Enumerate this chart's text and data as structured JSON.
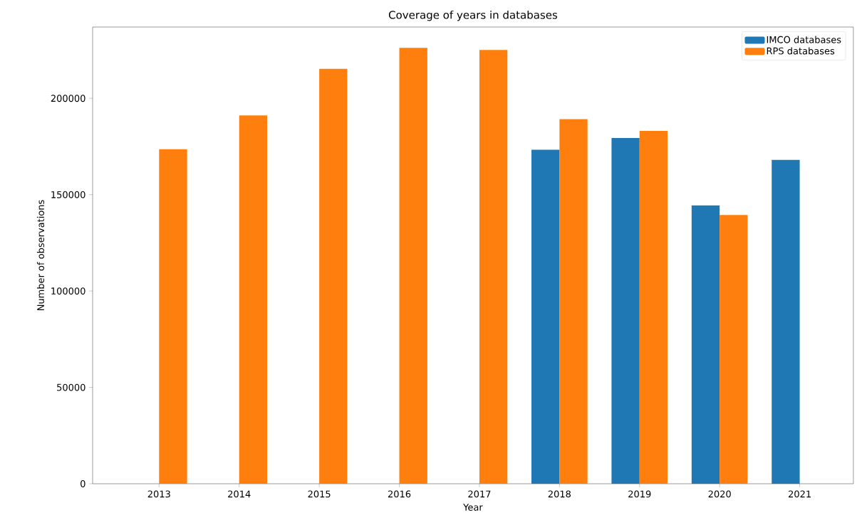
{
  "chart_data": {
    "type": "bar",
    "title": "Coverage of years in databases",
    "xlabel": "Year",
    "ylabel": "Number of observations",
    "categories": [
      "2013",
      "2014",
      "2015",
      "2016",
      "2017",
      "2018",
      "2019",
      "2020",
      "2021"
    ],
    "series": [
      {
        "name": "IMCO databases",
        "color": "#1f77b4",
        "values": [
          null,
          null,
          null,
          null,
          null,
          173300,
          179400,
          144400,
          168100
        ]
      },
      {
        "name": "RPS databases",
        "color": "#ff7f0e",
        "values": [
          173600,
          191100,
          215300,
          226200,
          225100,
          189200,
          183100,
          139400,
          null
        ]
      }
    ],
    "ylim": [
      0,
      237000
    ],
    "yticks": [
      0,
      50000,
      100000,
      150000,
      200000
    ],
    "legend": "top right",
    "grid": false
  }
}
